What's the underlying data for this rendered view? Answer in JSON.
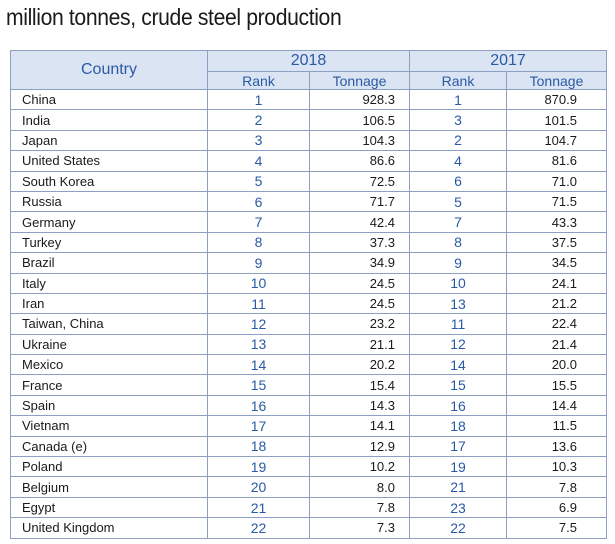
{
  "caption": "million tonnes, crude steel production",
  "table": {
    "country_header": "Country",
    "year_a": "2018",
    "year_b": "2017",
    "rank_header": "Rank",
    "tonnage_header": "Tonnage",
    "rows": [
      {
        "country": "China",
        "rank_2018": "1",
        "tonnage_2018": "928.3",
        "rank_2017": "1",
        "tonnage_2017": "870.9"
      },
      {
        "country": "India",
        "rank_2018": "2",
        "tonnage_2018": "106.5",
        "rank_2017": "3",
        "tonnage_2017": "101.5"
      },
      {
        "country": "Japan",
        "rank_2018": "3",
        "tonnage_2018": "104.3",
        "rank_2017": "2",
        "tonnage_2017": "104.7"
      },
      {
        "country": "United States",
        "rank_2018": "4",
        "tonnage_2018": "86.6",
        "rank_2017": "4",
        "tonnage_2017": "81.6"
      },
      {
        "country": "South Korea",
        "rank_2018": "5",
        "tonnage_2018": "72.5",
        "rank_2017": "6",
        "tonnage_2017": "71.0"
      },
      {
        "country": "Russia",
        "rank_2018": "6",
        "tonnage_2018": "71.7",
        "rank_2017": "5",
        "tonnage_2017": "71.5"
      },
      {
        "country": "Germany",
        "rank_2018": "7",
        "tonnage_2018": "42.4",
        "rank_2017": "7",
        "tonnage_2017": "43.3"
      },
      {
        "country": "Turkey",
        "rank_2018": "8",
        "tonnage_2018": "37.3",
        "rank_2017": "8",
        "tonnage_2017": "37.5"
      },
      {
        "country": "Brazil",
        "rank_2018": "9",
        "tonnage_2018": "34.9",
        "rank_2017": "9",
        "tonnage_2017": "34.5"
      },
      {
        "country": "Italy",
        "rank_2018": "10",
        "tonnage_2018": "24.5",
        "rank_2017": "10",
        "tonnage_2017": "24.1"
      },
      {
        "country": "Iran",
        "rank_2018": "11",
        "tonnage_2018": "24.5",
        "rank_2017": "13",
        "tonnage_2017": "21.2"
      },
      {
        "country": "Taiwan, China",
        "rank_2018": "12",
        "tonnage_2018": "23.2",
        "rank_2017": "11",
        "tonnage_2017": "22.4"
      },
      {
        "country": "Ukraine",
        "rank_2018": "13",
        "tonnage_2018": "21.1",
        "rank_2017": "12",
        "tonnage_2017": "21.4"
      },
      {
        "country": "Mexico",
        "rank_2018": "14",
        "tonnage_2018": "20.2",
        "rank_2017": "14",
        "tonnage_2017": "20.0"
      },
      {
        "country": "France",
        "rank_2018": "15",
        "tonnage_2018": "15.4",
        "rank_2017": "15",
        "tonnage_2017": "15.5"
      },
      {
        "country": "Spain",
        "rank_2018": "16",
        "tonnage_2018": "14.3",
        "rank_2017": "16",
        "tonnage_2017": "14.4"
      },
      {
        "country": "Vietnam",
        "rank_2018": "17",
        "tonnage_2018": "14.1",
        "rank_2017": "18",
        "tonnage_2017": "11.5"
      },
      {
        "country": "Canada (e)",
        "rank_2018": "18",
        "tonnage_2018": "12.9",
        "rank_2017": "17",
        "tonnage_2017": "13.6"
      },
      {
        "country": "Poland",
        "rank_2018": "19",
        "tonnage_2018": "10.2",
        "rank_2017": "19",
        "tonnage_2017": "10.3"
      },
      {
        "country": "Belgium",
        "rank_2018": "20",
        "tonnage_2018": "8.0",
        "rank_2017": "21",
        "tonnage_2017": "7.8"
      },
      {
        "country": "Egypt",
        "rank_2018": "21",
        "tonnage_2018": "7.8",
        "rank_2017": "23",
        "tonnage_2017": "6.9"
      },
      {
        "country": "United Kingdom",
        "rank_2018": "22",
        "tonnage_2018": "7.3",
        "rank_2017": "22",
        "tonnage_2017": "7.5"
      }
    ]
  },
  "colors": {
    "header_bg": "#dbe4f3",
    "header_text": "#2a5aa4",
    "rank_text": "#2a5aa4",
    "border": "#8da0c2"
  }
}
